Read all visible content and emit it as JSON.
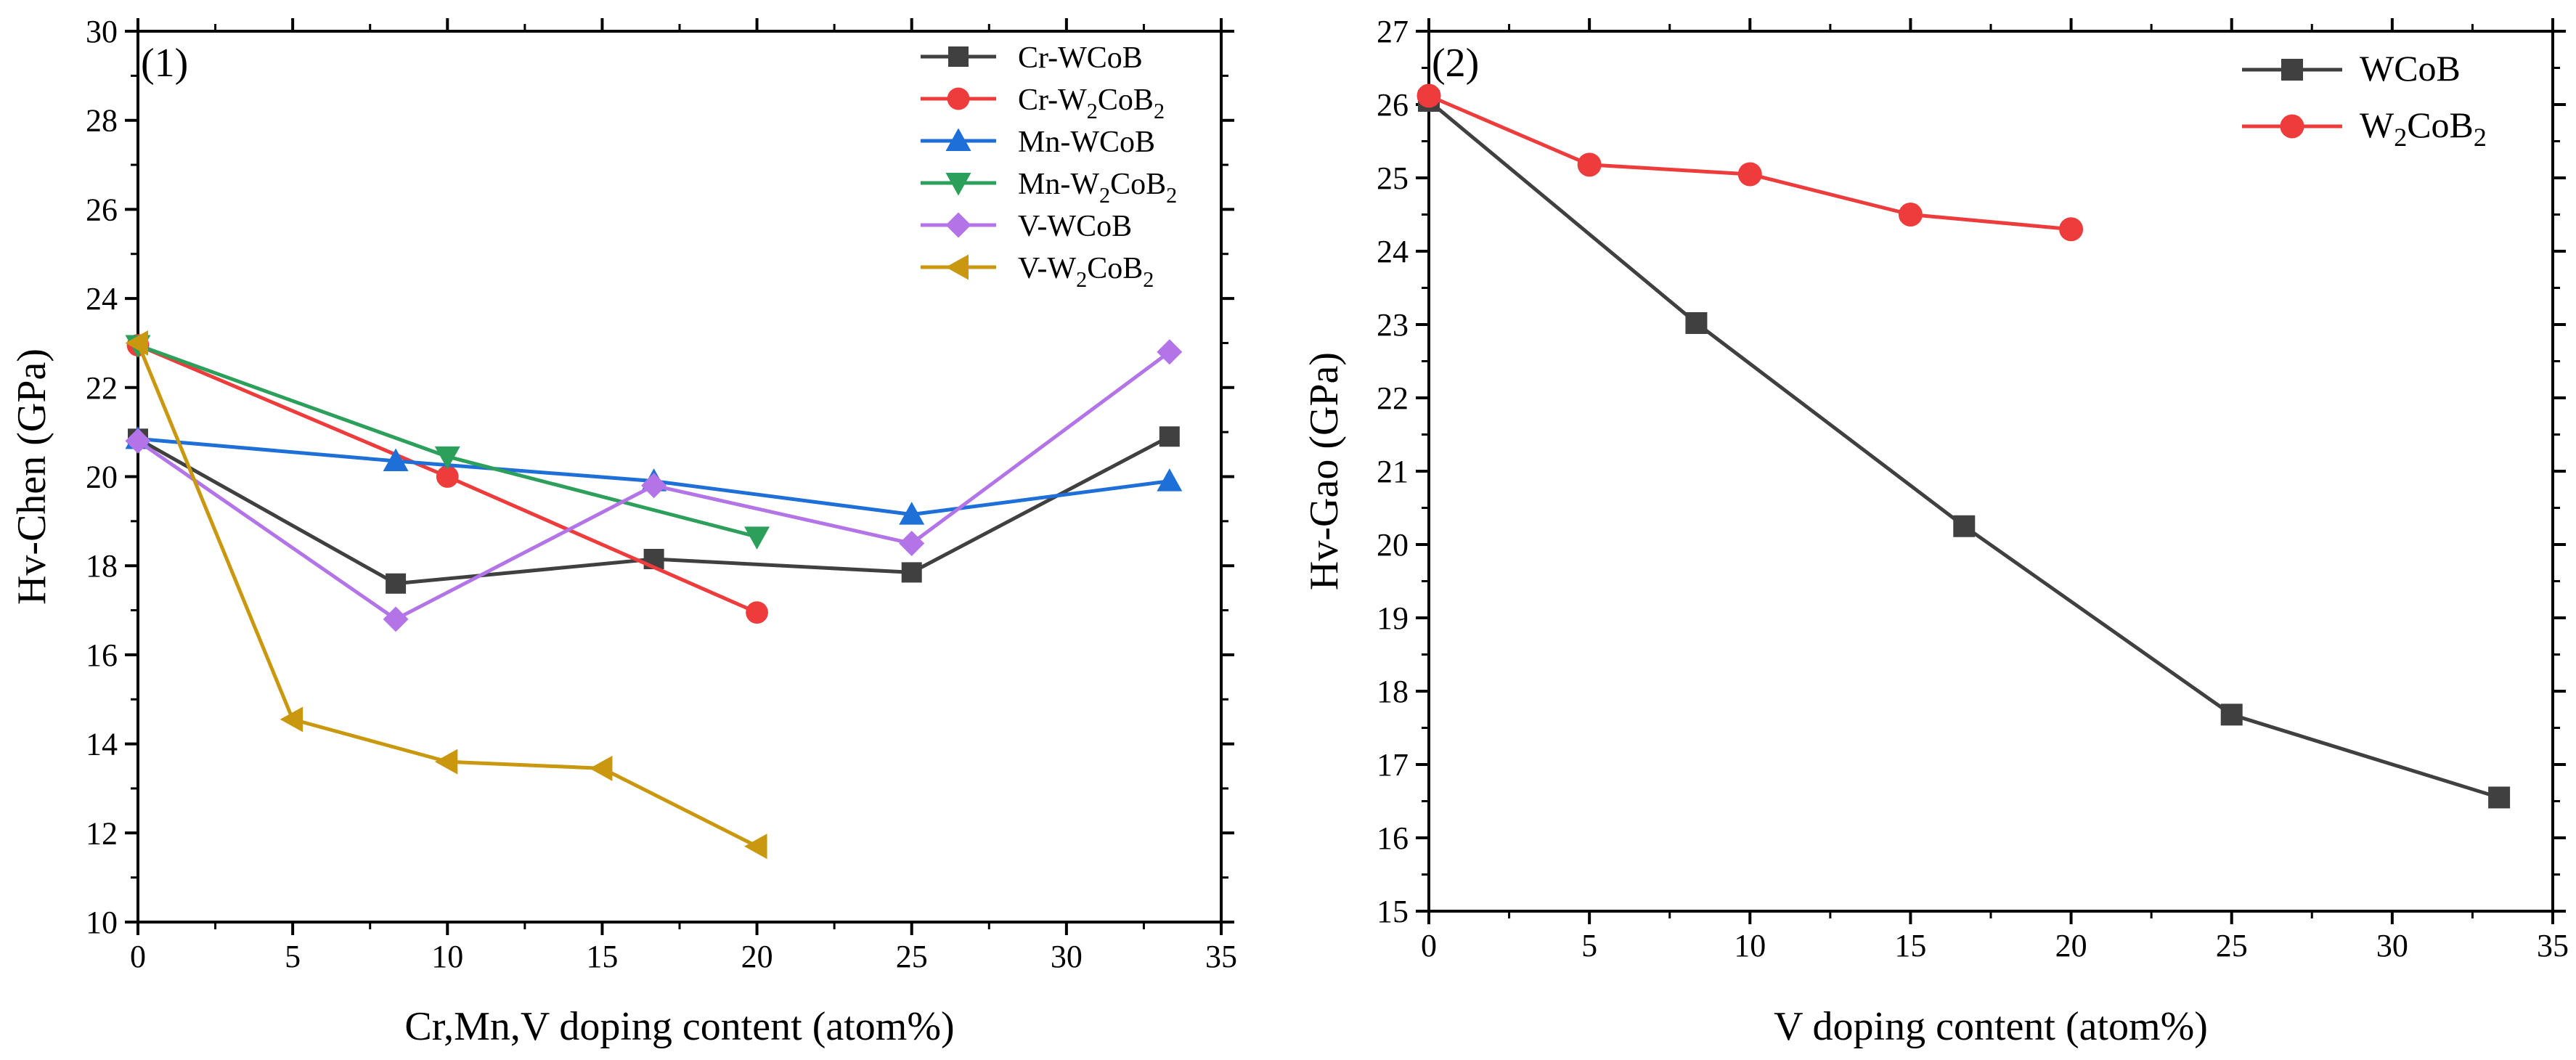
{
  "chart_data": [
    {
      "type": "line",
      "panel_label": "(1)",
      "xlabel": "Cr,Mn,V doping content (atom%)",
      "ylabel": "Hv-Chen (GPa)",
      "xlim": [
        0,
        35
      ],
      "ylim": [
        10,
        30
      ],
      "xticks": [
        0,
        5,
        10,
        15,
        20,
        25,
        30,
        35
      ],
      "yticks": [
        10,
        12,
        14,
        16,
        18,
        20,
        22,
        24,
        26,
        28,
        30
      ],
      "legend_position": "top-right",
      "series": [
        {
          "name": "Cr-WCoB",
          "label_main": "Cr-WCoB",
          "label_parts": [],
          "color": "#404040",
          "marker": "square",
          "x": [
            0,
            8.33,
            16.67,
            25,
            33.33
          ],
          "y": [
            20.85,
            17.6,
            18.15,
            17.85,
            20.9
          ]
        },
        {
          "name": "Cr-W2CoB2",
          "label_main": "Cr-W",
          "label_parts": [
            {
              "sub": "2",
              "text": "CoB"
            },
            {
              "sub": "2",
              "text": ""
            }
          ],
          "color": "#ee3b3b",
          "marker": "circle",
          "x": [
            0,
            10,
            20
          ],
          "y": [
            22.95,
            20.0,
            16.95
          ]
        },
        {
          "name": "Mn-WCoB",
          "label_main": "Mn-WCoB",
          "label_parts": [],
          "color": "#1f6fd8",
          "marker": "triangle-up",
          "x": [
            0,
            8.33,
            16.67,
            25,
            33.33
          ],
          "y": [
            20.85,
            20.35,
            19.9,
            19.15,
            19.9
          ]
        },
        {
          "name": "Mn-W2CoB2",
          "label_main": "Mn-W",
          "label_parts": [
            {
              "sub": "2",
              "text": "CoB"
            },
            {
              "sub": "2",
              "text": ""
            }
          ],
          "color": "#2ca05a",
          "marker": "triangle-down",
          "x": [
            0,
            10,
            20
          ],
          "y": [
            22.95,
            20.45,
            18.65
          ]
        },
        {
          "name": "V-WCoB",
          "label_main": "V-WCoB",
          "label_parts": [],
          "color": "#b374e8",
          "marker": "diamond",
          "x": [
            0,
            8.33,
            16.67,
            25,
            33.33
          ],
          "y": [
            20.8,
            16.8,
            19.8,
            18.5,
            22.8
          ]
        },
        {
          "name": "V-W2CoB2",
          "label_main": "V-W",
          "label_parts": [
            {
              "sub": "2",
              "text": "CoB"
            },
            {
              "sub": "2",
              "text": ""
            }
          ],
          "color": "#c9980e",
          "marker": "triangle-left",
          "x": [
            0,
            5,
            10,
            15,
            20
          ],
          "y": [
            23.0,
            14.55,
            13.6,
            13.45,
            11.7
          ]
        }
      ]
    },
    {
      "type": "line",
      "panel_label": "(2)",
      "xlabel": "V doping content (atom%)",
      "ylabel": "Hv-Gao (GPa)",
      "xlim": [
        0,
        35
      ],
      "ylim": [
        15,
        27
      ],
      "xticks": [
        0,
        5,
        10,
        15,
        20,
        25,
        30,
        35
      ],
      "yticks": [
        15,
        16,
        17,
        18,
        19,
        20,
        21,
        22,
        23,
        24,
        25,
        26,
        27
      ],
      "legend_position": "top-right",
      "series": [
        {
          "name": "WCoB",
          "label_main": "WCoB",
          "label_parts": [],
          "color": "#404040",
          "marker": "square",
          "x": [
            0,
            8.33,
            16.67,
            25,
            33.33
          ],
          "y": [
            26.05,
            23.02,
            20.25,
            17.68,
            16.55
          ]
        },
        {
          "name": "W2CoB2",
          "label_main": "W",
          "label_parts": [
            {
              "sub": "2",
              "text": "CoB"
            },
            {
              "sub": "2",
              "text": ""
            }
          ],
          "color": "#ee3b3b",
          "marker": "circle",
          "x": [
            0,
            5,
            10,
            15,
            20
          ],
          "y": [
            26.12,
            25.18,
            25.05,
            24.5,
            24.3
          ]
        }
      ]
    }
  ]
}
